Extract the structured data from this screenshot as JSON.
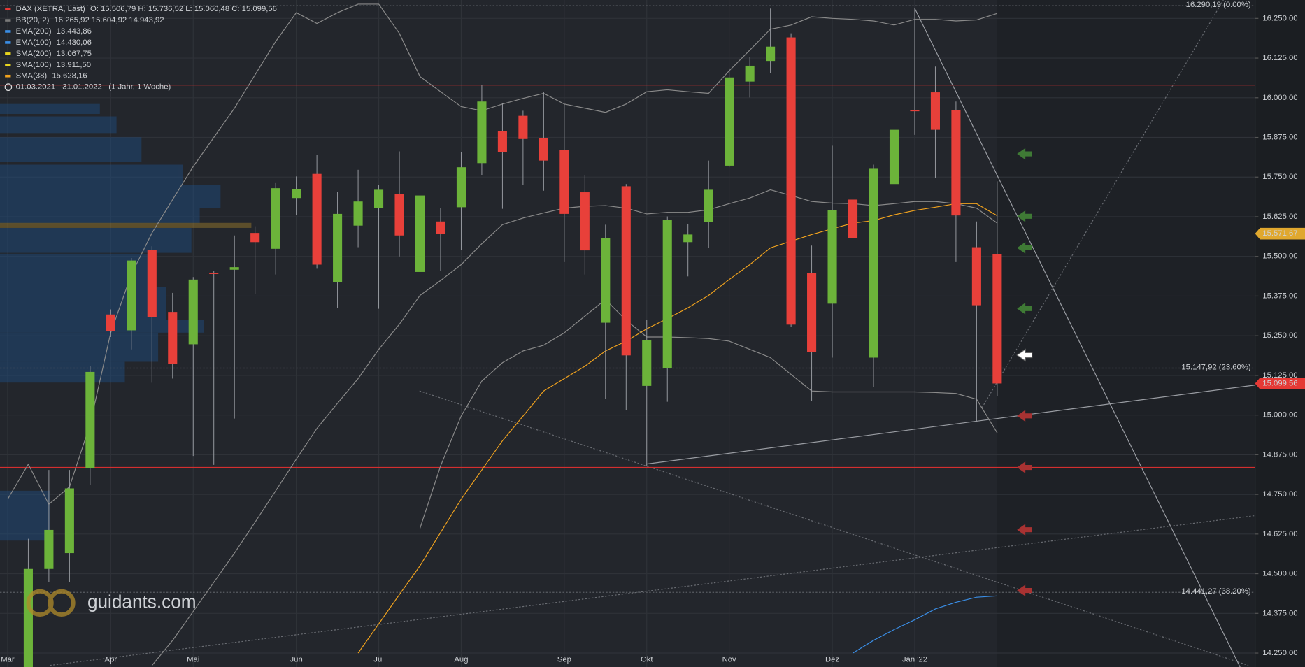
{
  "chart_data": {
    "type": "candlestick",
    "legend": [
      {
        "name": "DAX (XETRA, Last)",
        "text": "O: 15.506,79  H: 15.736,52  L: 15.060,48  C: 15.099,56",
        "color": "#e53935"
      },
      {
        "name": "BB(20, 2)",
        "text": "16.265,92  15.604,92  14.943,92",
        "color": "#7a7a7a"
      },
      {
        "name": "EMA(200)",
        "text": "13.443,86",
        "color": "#3a8ee6"
      },
      {
        "name": "EMA(100)",
        "text": "14.430,06",
        "color": "#3a8ee6"
      },
      {
        "name": "SMA(200)",
        "text": "13.067,75",
        "color": "#e8d51e"
      },
      {
        "name": "SMA(100)",
        "text": "13.911,50",
        "color": "#e8d51e"
      },
      {
        "name": "SMA(38)",
        "text": "15.628,16",
        "color": "#f0a21e"
      }
    ],
    "date_range": "01.03.2021 - 31.01.2022",
    "period": "(1 Jahr, 1 Woche)",
    "watermark": "guidants.com",
    "categories": [
      "Mär",
      null,
      null,
      null,
      null,
      "Apr",
      null,
      null,
      null,
      "Mai",
      null,
      null,
      null,
      null,
      "Jun",
      null,
      null,
      null,
      "Jul",
      null,
      null,
      null,
      "Aug",
      null,
      null,
      null,
      null,
      "Sep",
      null,
      null,
      null,
      "Okt",
      null,
      null,
      null,
      "Nov",
      null,
      null,
      null,
      null,
      "Dez",
      null,
      null,
      null,
      "Jan '22",
      null,
      null,
      null,
      null
    ],
    "open": [
      null,
      14200,
      14515,
      14565,
      14832,
      15317,
      15267,
      15521,
      15325,
      15223,
      15447,
      15458,
      15574,
      15524,
      15684,
      15760,
      15419,
      15597,
      15652,
      15697,
      15451,
      15610,
      15655,
      15794,
      15894,
      15943,
      15873,
      15836,
      15702,
      15291,
      15721,
      15092,
      15147,
      15545,
      15608,
      15786,
      16051,
      16116,
      16190,
      15448,
      15351,
      15679,
      15181,
      15728,
      15960,
      16017,
      15962,
      15529,
      15506.79
    ],
    "high": [
      null,
      14610,
      14827,
      14827,
      15154,
      15333,
      15495,
      15532,
      15385,
      15435,
      15453,
      15566,
      15595,
      15731,
      15752,
      15820,
      15702,
      15773,
      15726,
      15831,
      15697,
      15652,
      15828,
      16040,
      15983,
      15959,
      16019,
      15980,
      15757,
      15600,
      15728,
      15299,
      15626,
      15603,
      15802,
      16093,
      16129,
      16281,
      16203,
      15534,
      15849,
      15815,
      15789,
      15988,
      16281,
      16098,
      15988,
      15610,
      15736.52
    ],
    "low": [
      null,
      14150,
      14473,
      14473,
      14780,
      15246,
      15207,
      15102,
      15115,
      14871,
      14843,
      14989,
      15382,
      15443,
      15631,
      15461,
      15338,
      15529,
      15335,
      15500,
      15076,
      15453,
      15521,
      15757,
      15650,
      15726,
      15707,
      15482,
      15443,
      15050,
      15016,
      14840,
      15042,
      15437,
      15526,
      15781,
      16001,
      16077,
      15278,
      15044,
      15181,
      15448,
      15089,
      15720,
      15883,
      15747,
      15482,
      14979,
      15060.48
    ],
    "close": [
      null,
      14515,
      14638,
      14769,
      15136,
      15265,
      15487,
      15309,
      15162,
      15427,
      15445,
      15466,
      15545,
      15715,
      15713,
      15474,
      15634,
      15673,
      15710,
      15566,
      15692,
      15571,
      15781,
      15988,
      15828,
      15870,
      15802,
      15634,
      15519,
      15558,
      15188,
      15236,
      15616,
      15569,
      15710,
      16064,
      16101,
      16161,
      15285,
      15199,
      15647,
      15558,
      15776,
      15899,
      15959,
      15899,
      15629,
      15346,
      15099.56
    ],
    "up_color": "#6cb33a",
    "down_color": "#e8403a",
    "overlays": {
      "bb_upper": {
        "color": "#8a8a8a",
        "values": [
          14735,
          14845,
          14719,
          14774,
          14971,
          15259,
          15443,
          15574,
          15679,
          15783,
          15875,
          15967,
          16072,
          16177,
          16268,
          16234,
          16268,
          16295,
          16295,
          16203,
          16067,
          16019,
          15972,
          15959,
          15980,
          15998,
          16014,
          15980,
          15967,
          15954,
          15980,
          16019,
          16025,
          16019,
          16014,
          16085,
          16150,
          16216,
          16229,
          16255,
          16250,
          16247,
          16242,
          16229,
          16247,
          16247,
          16242,
          16245,
          16265.92
        ]
      },
      "bb_middle": {
        "color": "#8a8a8a",
        "values": [
          null,
          null,
          null,
          null,
          null,
          null,
          null,
          14211,
          14290,
          14381,
          14473,
          14565,
          14662,
          14761,
          14861,
          14958,
          15037,
          15115,
          15207,
          15286,
          15377,
          15424,
          15474,
          15540,
          15600,
          15621,
          15637,
          15652,
          15658,
          15660,
          15652,
          15634,
          15639,
          15639,
          15647,
          15666,
          15684,
          15710,
          15692,
          15673,
          15668,
          15666,
          15660,
          15666,
          15673,
          15673,
          15666,
          15652,
          15604.92
        ]
      },
      "bb_lower": {
        "color": "#8a8a8a",
        "values": [
          null,
          null,
          null,
          null,
          null,
          null,
          null,
          null,
          null,
          null,
          null,
          null,
          null,
          null,
          null,
          null,
          null,
          null,
          null,
          null,
          14643,
          14840,
          14997,
          15107,
          15165,
          15202,
          15220,
          15259,
          15312,
          15364,
          15299,
          15246,
          15246,
          15244,
          15241,
          15233,
          15207,
          15181,
          15128,
          15076,
          15073,
          15073,
          15073,
          15073,
          15073,
          15071,
          15068,
          15050,
          14943.92
        ]
      },
      "sma38": {
        "color": "#f0a21e",
        "values": [
          null,
          null,
          null,
          null,
          null,
          null,
          null,
          null,
          null,
          null,
          null,
          null,
          null,
          null,
          null,
          null,
          null,
          14250,
          14342,
          14434,
          14525,
          14630,
          14735,
          14827,
          14919,
          14997,
          15076,
          15115,
          15154,
          15202,
          15233,
          15272,
          15304,
          15338,
          15377,
          15427,
          15474,
          15527,
          15548,
          15569,
          15587,
          15605,
          15613,
          15631,
          15645,
          15655,
          15666,
          15666,
          15628.16
        ]
      },
      "ema100": {
        "color": "#3a8ee6",
        "values": [
          null,
          null,
          null,
          null,
          null,
          null,
          null,
          null,
          null,
          null,
          null,
          null,
          null,
          null,
          null,
          null,
          null,
          null,
          null,
          null,
          null,
          null,
          null,
          null,
          null,
          null,
          null,
          null,
          null,
          null,
          null,
          null,
          null,
          null,
          null,
          null,
          null,
          null,
          null,
          null,
          null,
          14250,
          14290,
          14324,
          14355,
          14389,
          14410,
          14426,
          14430.06
        ]
      }
    },
    "levels": [
      {
        "value": 16040,
        "color": "#d32f2f"
      },
      {
        "value": 14835,
        "color": "#d32f2f"
      }
    ],
    "fib": [
      {
        "value": 16290.19,
        "label": "16.290,19 (0.00%)"
      },
      {
        "value": 15147.92,
        "label": "15.147,92 (23.60%)"
      },
      {
        "value": 14441.27,
        "label": "14.441,27 (38.20%)"
      }
    ],
    "price_tags": [
      {
        "value": 15571.67,
        "label": "15.571,67",
        "color": "#e0a82e"
      },
      {
        "value": 15099.56,
        "label": "15.099,56",
        "color": "#e53935"
      }
    ],
    "ylim": [
      14206,
      16308
    ],
    "yticks": [
      {
        "value": 16250,
        "label": "16.250,00"
      },
      {
        "value": 16125,
        "label": "16.125,00"
      },
      {
        "value": 16000,
        "label": "16.000,00"
      },
      {
        "value": 15875,
        "label": "15.875,00"
      },
      {
        "value": 15750,
        "label": "15.750,00"
      },
      {
        "value": 15625,
        "label": "15.625,00"
      },
      {
        "value": 15500,
        "label": "15.500,00"
      },
      {
        "value": 15375,
        "label": "15.375,00"
      },
      {
        "value": 15250,
        "label": "15.250,00"
      },
      {
        "value": 15125,
        "label": "15.125,00"
      },
      {
        "value": 15000,
        "label": "15.000,00"
      },
      {
        "value": 14875,
        "label": "14.875,00"
      },
      {
        "value": 14750,
        "label": "14.750,00"
      },
      {
        "value": 14625,
        "label": "14.625,00"
      },
      {
        "value": 14500,
        "label": "14.500,00"
      },
      {
        "value": 14375,
        "label": "14.375,00"
      },
      {
        "value": 14250,
        "label": "14.250,00"
      }
    ],
    "grid": true
  }
}
